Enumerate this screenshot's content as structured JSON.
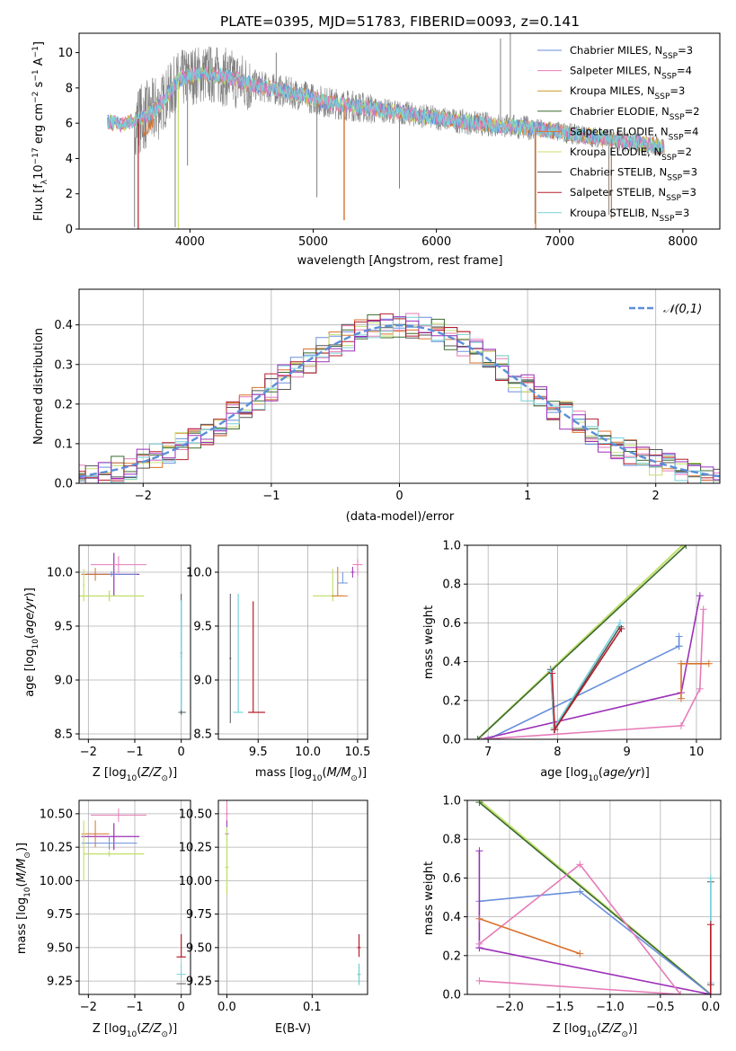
{
  "colors": {
    "Chabrier MILES": "#6a8fdc",
    "Salpeter MILES": "#e57bb8",
    "Kroupa MILES": "#c89a28",
    "Chabrier ELODIE": "#3b6b2f",
    "Salpeter ELODIE": "#d9722c",
    "Kroupa ELODIE": "#c4e070",
    "Chabrier STELIB": "#555555",
    "Salpeter STELIB": "#b71d2a",
    "Kroupa STELIB": "#77d1d8",
    "purple": "#9b30b8",
    "gaussian": "#5b8fd8",
    "grey_spectrum": "#808080"
  },
  "chart_data": [
    {
      "id": "spectrum",
      "type": "line",
      "title": "PLATE=0395, MJD=51783, FIBERID=0093, z=0.141",
      "xlabel": "wavelength [Angstrom, rest frame]",
      "ylabel_parts": [
        "Flux [f",
        "λ",
        "10",
        "−17",
        " erg cm",
        "−2",
        " s",
        "−1",
        " A",
        "−1",
        "]"
      ],
      "xlim": [
        3100,
        8300
      ],
      "ylim": [
        0,
        11.1
      ],
      "xticks": [
        4000,
        5000,
        6000,
        7000,
        8000
      ],
      "yticks": [
        0,
        2,
        4,
        6,
        8,
        10
      ],
      "legend_position": "upper-right",
      "legend": [
        {
          "name": "Chabrier MILES",
          "nssp": "3"
        },
        {
          "name": "Salpeter MILES",
          "nssp": "4"
        },
        {
          "name": "Kroupa MILES",
          "nssp": "3"
        },
        {
          "name": "Chabrier ELODIE",
          "nssp": "2"
        },
        {
          "name": "Salpeter ELODIE",
          "nssp": "4"
        },
        {
          "name": "Kroupa ELODIE",
          "nssp": "2"
        },
        {
          "name": "Chabrier STELIB",
          "nssp": "3"
        },
        {
          "name": "Salpeter STELIB",
          "nssp": "3"
        },
        {
          "name": "Kroupa STELIB",
          "nssp": "3"
        }
      ],
      "continuum": [
        [
          3330,
          6.1
        ],
        [
          3450,
          5.9
        ],
        [
          3560,
          6.2
        ],
        [
          3700,
          6.6
        ],
        [
          3800,
          7.4
        ],
        [
          3900,
          8.4
        ],
        [
          4000,
          8.7
        ],
        [
          4150,
          8.8
        ],
        [
          4300,
          8.6
        ],
        [
          4500,
          8.2
        ],
        [
          4700,
          7.9
        ],
        [
          4900,
          7.6
        ],
        [
          5100,
          7.2
        ],
        [
          5300,
          7.0
        ],
        [
          5500,
          6.8
        ],
        [
          5700,
          6.6
        ],
        [
          6000,
          6.3
        ],
        [
          6300,
          6.0
        ],
        [
          6500,
          5.9
        ],
        [
          6800,
          5.7
        ],
        [
          7100,
          5.4
        ],
        [
          7400,
          5.1
        ],
        [
          7700,
          4.8
        ],
        [
          7850,
          4.65
        ]
      ],
      "spikes": [
        [
          3550,
          0.1
        ],
        [
          3880,
          0.1
        ],
        [
          5250,
          0.5
        ],
        [
          6800,
          0.3
        ],
        [
          7400,
          0.8
        ],
        [
          6600,
          11.1
        ],
        [
          6520,
          10.8
        ],
        [
          3980,
          3.6
        ],
        [
          5700,
          2.3
        ],
        [
          5030,
          1.8
        ],
        [
          4180,
          9.7
        ],
        [
          4700,
          10.0
        ]
      ]
    },
    {
      "id": "residual_histogram",
      "type": "line",
      "xlabel": "(data-model)/error",
      "ylabel": "Normed distribution",
      "xlim": [
        -2.5,
        2.5
      ],
      "ylim": [
        0,
        0.49
      ],
      "xticks": [
        -2,
        -1,
        0,
        1,
        2
      ],
      "yticks": [
        0.0,
        0.1,
        0.2,
        0.3,
        0.4
      ],
      "grid": true,
      "legend_position": "upper-right",
      "legend": "𝒩(0,1)",
      "gaussian": {
        "mean": 0,
        "sigma": 1
      }
    },
    {
      "id": "age_vs_Z",
      "type": "scatter",
      "xlabel": "Z [log10(Z/Z⊙)]",
      "ylabel": "age  [log10(age/yr)]",
      "xlim": [
        -2.2,
        0.2
      ],
      "ylim": [
        8.45,
        10.25
      ],
      "xticks": [
        -2,
        -1,
        0
      ],
      "yticks": [
        8.5,
        9.0,
        9.5,
        10.0
      ],
      "grid": true
    },
    {
      "id": "age_vs_mass",
      "type": "scatter",
      "xlabel": "mass [log10(M/M⊙)]",
      "xlim": [
        9.1,
        10.6
      ],
      "ylim": [
        8.45,
        10.25
      ],
      "xticks": [
        9.5,
        10.0,
        10.5
      ],
      "yticks": [
        8.5,
        9.0,
        9.5,
        10.0
      ],
      "grid": true
    },
    {
      "id": "weight_vs_age",
      "type": "line",
      "xlabel": "age  [log10(age/yr)]",
      "ylabel": "mass weight",
      "xlim": [
        6.7,
        10.35
      ],
      "ylim": [
        0,
        1.0
      ],
      "xticks": [
        7,
        8,
        9,
        10
      ],
      "yticks": [
        0.0,
        0.2,
        0.4,
        0.6,
        0.8,
        1.0
      ],
      "grid": true,
      "series": [
        {
          "color": "Kroupa ELODIE",
          "x": [
            6.85,
            9.8
          ],
          "y": [
            0.0,
            1.0
          ]
        },
        {
          "color": "Chabrier ELODIE",
          "x": [
            6.85,
            9.85
          ],
          "y": [
            0.0,
            1.0
          ]
        },
        {
          "color": "Chabrier MILES",
          "x": [
            7.0,
            9.75
          ],
          "y": [
            0.0,
            0.48
          ]
        },
        {
          "color": "Chabrier MILES",
          "x": [
            9.75,
            9.75
          ],
          "y": [
            0.48,
            0.53
          ]
        },
        {
          "color": "purple",
          "x": [
            6.9,
            9.78,
            10.05
          ],
          "y": [
            0.0,
            0.24,
            0.74
          ]
        },
        {
          "color": "Salpeter MILES",
          "x": [
            6.9,
            9.78,
            10.05,
            10.1
          ],
          "y": [
            0.0,
            0.07,
            0.26,
            0.67
          ]
        },
        {
          "color": "Salpeter ELODIE",
          "x": [
            9.78,
            9.78,
            10.18
          ],
          "y": [
            0.21,
            0.39,
            0.39
          ]
        },
        {
          "color": "Chabrier STELIB",
          "x": [
            7.9,
            7.95,
            8.9
          ],
          "y": [
            0.36,
            0.05,
            0.58
          ]
        },
        {
          "color": "Kroupa STELIB",
          "x": [
            7.9,
            7.95,
            8.9
          ],
          "y": [
            0.35,
            0.06,
            0.6
          ]
        },
        {
          "color": "Salpeter STELIB",
          "x": [
            7.92,
            7.96,
            8.92
          ],
          "y": [
            0.34,
            0.05,
            0.57
          ]
        }
      ]
    },
    {
      "id": "mass_vs_Z",
      "type": "scatter",
      "xlabel": "Z [log10(Z/Z⊙)]",
      "ylabel": "mass [log10(M/M⊙)]",
      "xlim": [
        -2.2,
        0.2
      ],
      "ylim": [
        9.15,
        10.6
      ],
      "xticks": [
        -2,
        -1,
        0
      ],
      "yticks": [
        9.25,
        9.5,
        9.75,
        10.0,
        10.25,
        10.5
      ],
      "grid": true
    },
    {
      "id": "mass_vs_EBV",
      "type": "scatter",
      "xlabel": "E(B-V)",
      "xlim": [
        -0.01,
        0.165
      ],
      "ylim": [
        9.15,
        10.6
      ],
      "xticks": [
        0.0,
        0.1
      ],
      "yticks": [
        9.25,
        9.5,
        9.75,
        10.0,
        10.25,
        10.5
      ],
      "grid": true
    },
    {
      "id": "weight_vs_Z",
      "type": "line",
      "xlabel": "Z [log10(Z/Z⊙)]",
      "ylabel": "mass weight",
      "xlim": [
        -2.42,
        0.1
      ],
      "ylim": [
        0,
        1.0
      ],
      "xticks": [
        -2.0,
        -1.5,
        -1.0,
        -0.5,
        0.0
      ],
      "yticks": [
        0.0,
        0.2,
        0.4,
        0.6,
        0.8,
        1.0
      ],
      "grid": true,
      "series": [
        {
          "color": "Kroupa ELODIE",
          "x": [
            -2.3,
            0.0
          ],
          "y": [
            1.0,
            0.0
          ]
        },
        {
          "color": "Chabrier ELODIE",
          "x": [
            -2.3,
            0.0
          ],
          "y": [
            0.99,
            0.0
          ]
        },
        {
          "color": "Chabrier MILES",
          "x": [
            -2.3,
            -1.3,
            0.0
          ],
          "y": [
            0.48,
            0.53,
            0.0
          ]
        },
        {
          "color": "purple",
          "x": [
            -2.3,
            -2.3,
            -2.3,
            0.0
          ],
          "y": [
            0.74,
            0.24,
            0.24,
            0.0
          ]
        },
        {
          "color": "Salpeter MILES",
          "x": [
            -2.3,
            -1.3,
            -0.3,
            -2.3
          ],
          "y": [
            0.26,
            0.67,
            0.0,
            0.07
          ]
        },
        {
          "color": "Salpeter ELODIE",
          "x": [
            -2.3,
            -1.3
          ],
          "y": [
            0.39,
            0.21
          ]
        },
        {
          "color": "Chabrier STELIB",
          "x": [
            0.0,
            0.0
          ],
          "y": [
            0.05,
            0.58
          ]
        },
        {
          "color": "Kroupa STELIB",
          "x": [
            0.0,
            0.0
          ],
          "y": [
            0.06,
            0.6
          ]
        },
        {
          "color": "Salpeter STELIB",
          "x": [
            0.0,
            0.0
          ],
          "y": [
            0.0,
            0.36
          ]
        }
      ]
    }
  ]
}
